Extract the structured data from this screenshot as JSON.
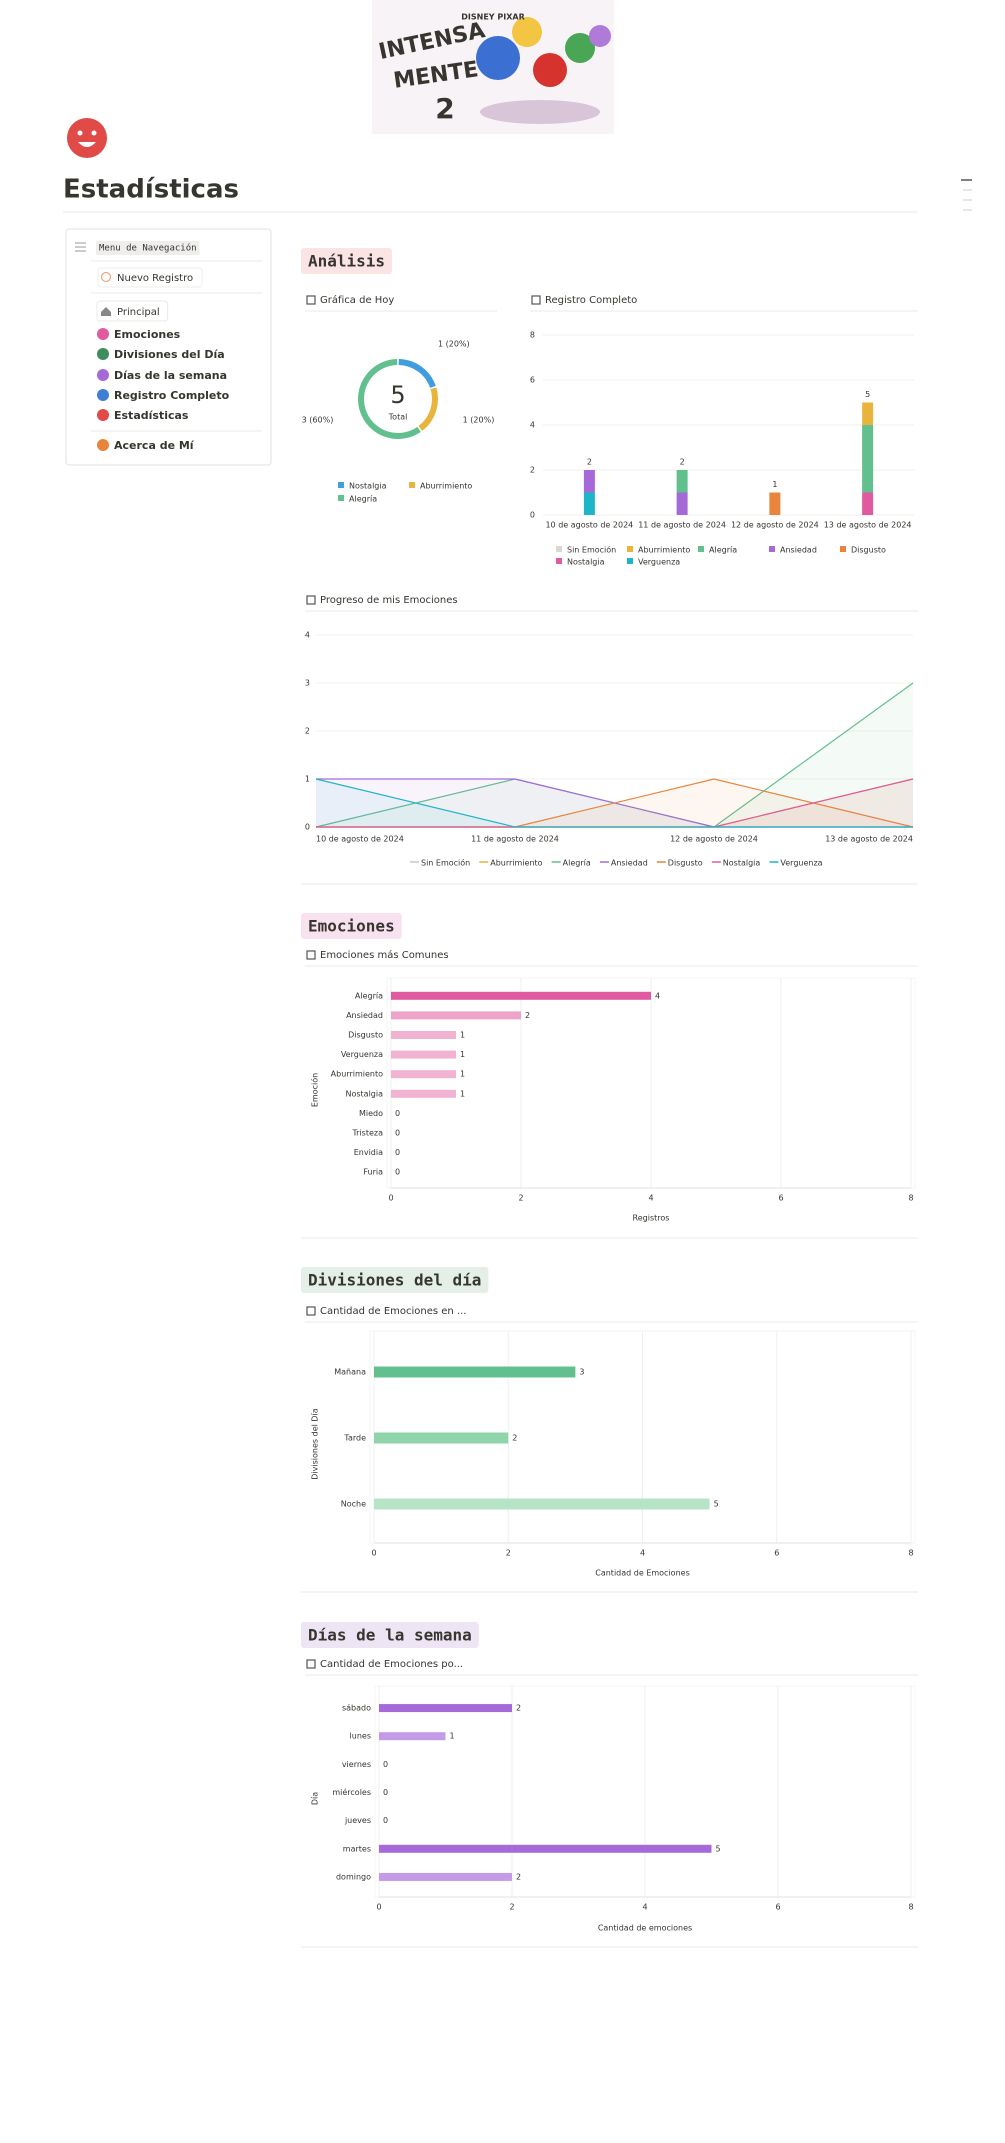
{
  "page": {
    "title": "Estadísticas",
    "logo": {
      "brand": "DISNEY PIXAR",
      "lines": [
        "INTENSA",
        "MENTE",
        "2"
      ]
    }
  },
  "sidebar": {
    "menu_label": "Menu de Navegación",
    "new_entry": "Nuevo Registro",
    "tab": "Principal",
    "links": [
      "Emociones",
      "Divisiones del Día",
      "Días de la semana",
      "Registro Completo",
      "Estadísticas"
    ],
    "about": "Acerca de Mí"
  },
  "sections": [
    "Análisis",
    "Emociones",
    "Divisiones del día",
    "Días de la semana"
  ],
  "chart_data": [
    {
      "type": "donut",
      "title": "Gráfica de Hoy",
      "total": 5,
      "total_label": "Total",
      "categories": [
        "Nostalgia",
        "Aburrimiento",
        "Alegría"
      ],
      "values": [
        1,
        1,
        3
      ],
      "value_labels": [
        "1 (20%)",
        "1 (20%)",
        "3 (60%)"
      ],
      "colors": [
        "#3e9ee0",
        "#e9b43b",
        "#62c08f"
      ]
    },
    {
      "type": "stacked_bar",
      "title": "Registro Completo",
      "categories": [
        "10 de agosto de 2024",
        "11 de agosto de 2024",
        "12 de agosto de 2024",
        "13 de agosto de 2024"
      ],
      "series": [
        {
          "name": "Sin Emoción",
          "color": "#d9d8d5",
          "values": [
            0,
            0,
            0,
            0
          ]
        },
        {
          "name": "Aburrimiento",
          "color": "#e9b43b",
          "values": [
            0,
            0,
            0,
            1
          ]
        },
        {
          "name": "Alegría",
          "color": "#62c08f",
          "values": [
            0,
            1,
            0,
            3
          ]
        },
        {
          "name": "Ansiedad",
          "color": "#a56ad8",
          "values": [
            1,
            1,
            0,
            0
          ]
        },
        {
          "name": "Disgusto",
          "color": "#e8843c",
          "values": [
            0,
            0,
            1,
            0
          ]
        },
        {
          "name": "Nostalgia",
          "color": "#e05aa0",
          "values": [
            0,
            0,
            0,
            1
          ]
        },
        {
          "name": "Verguenza",
          "color": "#1fb5c9",
          "values": [
            1,
            0,
            0,
            0
          ]
        }
      ],
      "totals": [
        2,
        2,
        1,
        5
      ],
      "ylim": [
        0,
        8
      ],
      "yticks": [
        0,
        2,
        4,
        6,
        8
      ],
      "grid": true
    },
    {
      "type": "line",
      "title": "Progreso de mis Emociones",
      "categories": [
        "10 de agosto de 2024",
        "11 de agosto de 2024",
        "12 de agosto de 2024",
        "13 de agosto de 2024"
      ],
      "series": [
        {
          "name": "Sin Emoción",
          "color": "#c9c8c5",
          "values": [
            0,
            0,
            0,
            0
          ]
        },
        {
          "name": "Aburrimiento",
          "color": "#e9b43b",
          "values": [
            0,
            0,
            0,
            1
          ]
        },
        {
          "name": "Alegría",
          "color": "#62c08f",
          "values": [
            0,
            1,
            0,
            3
          ]
        },
        {
          "name": "Ansiedad",
          "color": "#a56ad8",
          "values": [
            1,
            1,
            0,
            0
          ]
        },
        {
          "name": "Disgusto",
          "color": "#e8843c",
          "values": [
            0,
            0,
            1,
            0
          ]
        },
        {
          "name": "Nostalgia",
          "color": "#e05aa0",
          "values": [
            0,
            0,
            0,
            1
          ]
        },
        {
          "name": "Verguenza",
          "color": "#1fb5c9",
          "values": [
            1,
            0,
            0,
            0
          ]
        }
      ],
      "ylim": [
        0,
        4
      ],
      "yticks": [
        0,
        1,
        2,
        3,
        4
      ],
      "grid": true
    },
    {
      "type": "hbar",
      "title": "Emociones más Comunes",
      "categories": [
        "Alegría",
        "Ansiedad",
        "Disgusto",
        "Verguenza",
        "Aburrimiento",
        "Nostalgia",
        "Miedo",
        "Tristeza",
        "Envidia",
        "Furia"
      ],
      "values": [
        4,
        2,
        1,
        1,
        1,
        1,
        0,
        0,
        0,
        0
      ],
      "colors": [
        "#e05aa0",
        "#eea3c9",
        "#f2b3d3",
        "#f2b3d3",
        "#f2b3d3",
        "#f2b3d3",
        "#f2b3d3",
        "#f2b3d3",
        "#f2b3d3",
        "#f2b3d3"
      ],
      "xlim": [
        0,
        8
      ],
      "xticks": [
        0,
        2,
        4,
        6,
        8
      ],
      "xlabel": "Registros",
      "ylabel": "Emoción",
      "grid": true
    },
    {
      "type": "hbar",
      "title": "Cantidad de Emociones en ...",
      "categories": [
        "Mañana",
        "Tarde",
        "Noche"
      ],
      "values": [
        3,
        2,
        5
      ],
      "colors": [
        "#62c08f",
        "#8fd4aa",
        "#b5e4c7"
      ],
      "xlim": [
        0,
        8
      ],
      "xticks": [
        0,
        2,
        4,
        6,
        8
      ],
      "xlabel": "Cantidad de Emociones",
      "ylabel": "Divisiones del Día",
      "grid": true
    },
    {
      "type": "hbar",
      "title": "Cantidad de Emociones po...",
      "categories": [
        "sábado",
        "lunes",
        "viernes",
        "miércoles",
        "jueves",
        "martes",
        "domingo"
      ],
      "values": [
        2,
        1,
        0,
        0,
        0,
        5,
        2
      ],
      "colors": [
        "#a56ad8",
        "#c49be6",
        "#c49be6",
        "#c49be6",
        "#c49be6",
        "#a56ad8",
        "#c49be6"
      ],
      "xlim": [
        0,
        8
      ],
      "xticks": [
        0,
        2,
        4,
        6,
        8
      ],
      "xlabel": "Cantidad de emociones",
      "ylabel": "Día",
      "grid": true
    }
  ]
}
